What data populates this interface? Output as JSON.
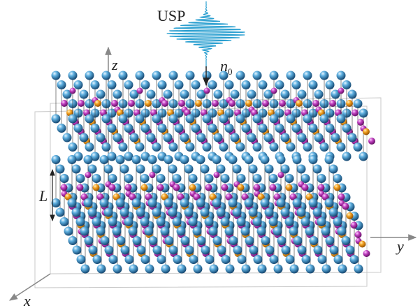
{
  "pulse": {
    "label": "USP",
    "direction": {
      "symbol": "n",
      "subscript": "0"
    }
  },
  "axes": {
    "x": "x",
    "y": "y",
    "z": "z"
  },
  "separation": "L"
}
